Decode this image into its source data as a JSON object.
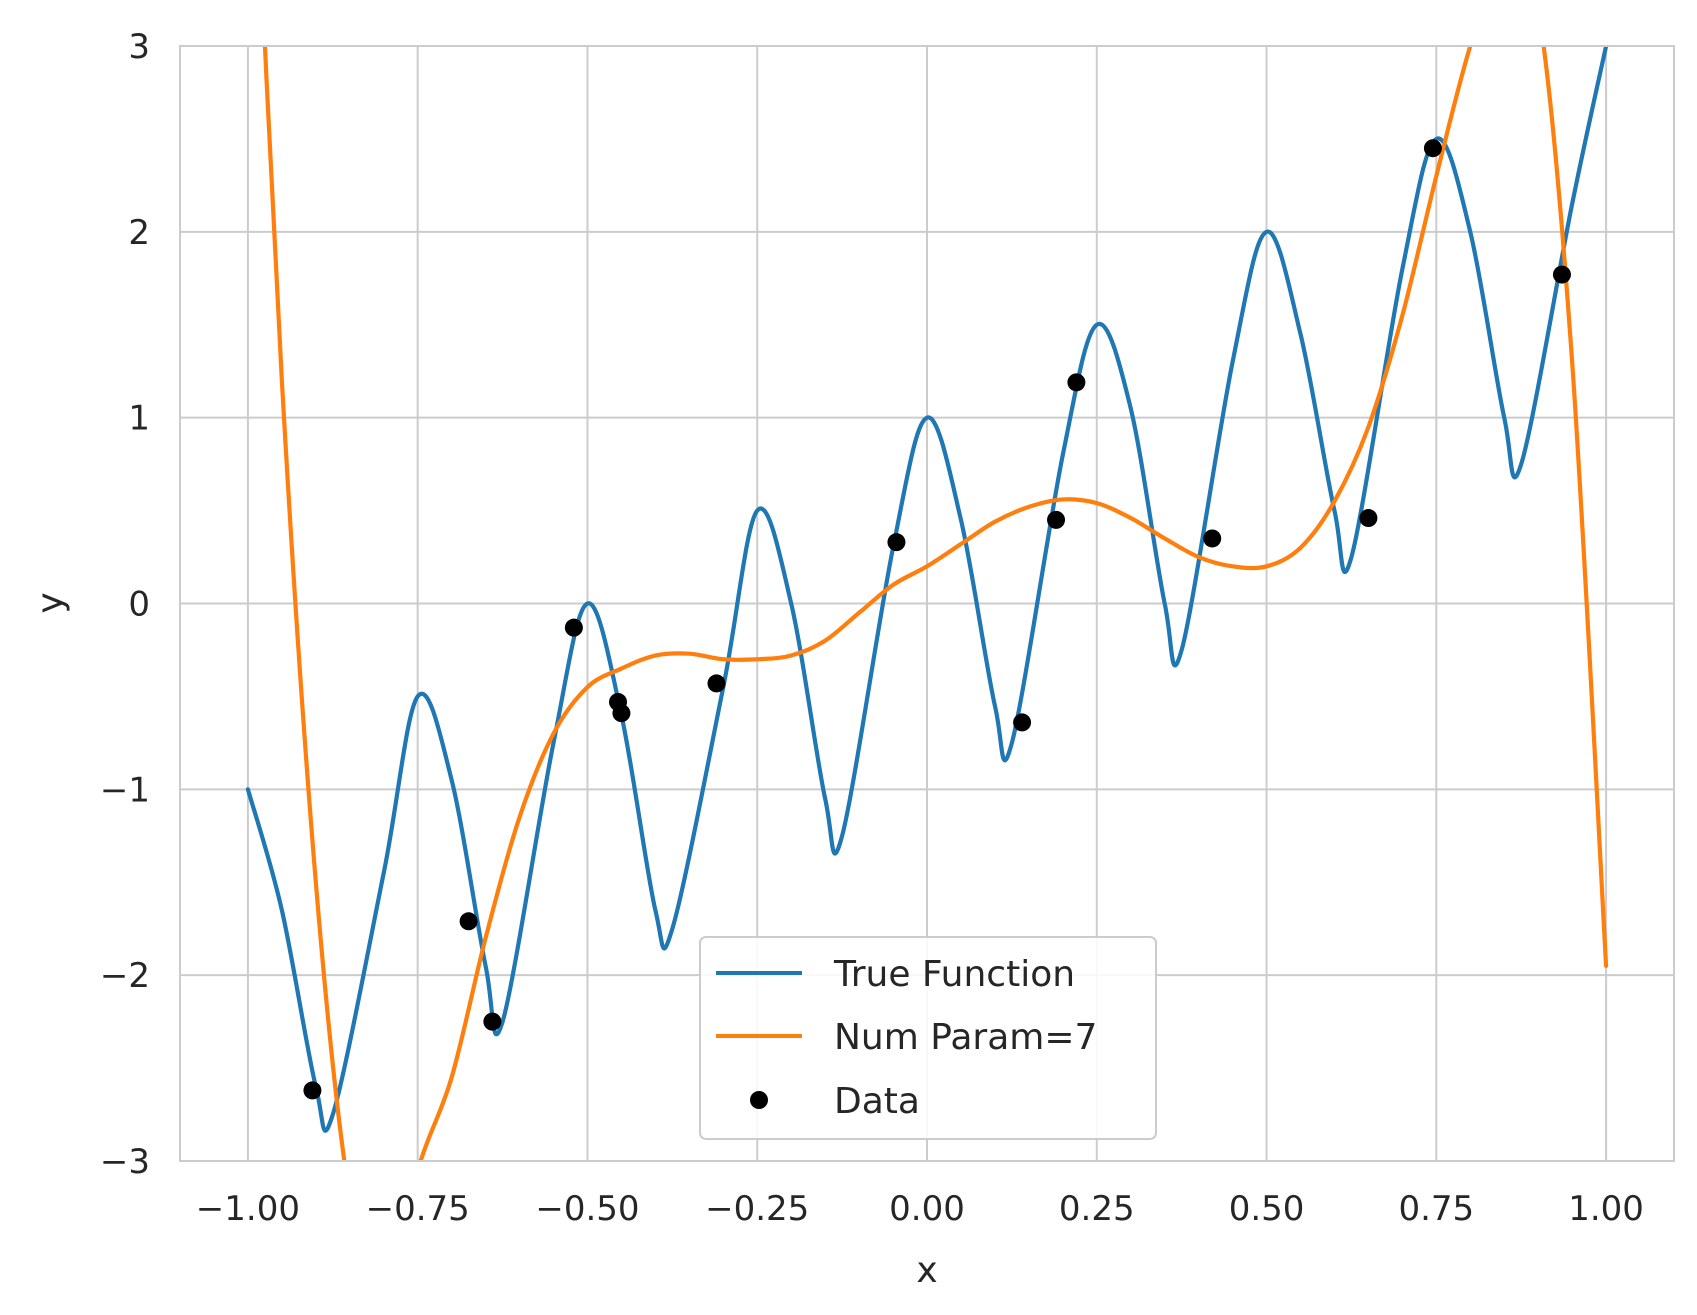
{
  "chart_data": {
    "type": "line",
    "title": "",
    "xlabel": "x",
    "ylabel": "y",
    "xlim": [
      -1.1,
      1.1
    ],
    "ylim": [
      -3,
      3
    ],
    "grid": true,
    "legend_position": "bottom-center",
    "x_ticks": [
      -1.0,
      -0.75,
      -0.5,
      -0.25,
      0.0,
      0.25,
      0.5,
      0.75,
      1.0
    ],
    "x_tick_labels": [
      "−1.00",
      "−0.75",
      "−0.50",
      "−0.25",
      "0.00",
      "0.25",
      "0.50",
      "0.75",
      "1.00"
    ],
    "y_ticks": [
      -3,
      -2,
      -1,
      0,
      1,
      2,
      3
    ],
    "y_tick_labels": [
      "−3",
      "−2",
      "−1",
      "0",
      "1",
      "2",
      "3"
    ],
    "series": [
      {
        "name": "True Function",
        "kind": "line",
        "color": "#1f77b4",
        "x": [
          -1.0,
          -0.95,
          -0.9,
          -0.875,
          -0.8,
          -0.75,
          -0.7,
          -0.65,
          -0.625,
          -0.55,
          -0.5,
          -0.45,
          -0.4,
          -0.375,
          -0.3,
          -0.25,
          -0.2,
          -0.15,
          -0.125,
          -0.05,
          0.0,
          0.05,
          0.1,
          0.125,
          0.2,
          0.25,
          0.3,
          0.35,
          0.375,
          0.45,
          0.5,
          0.55,
          0.6,
          0.625,
          0.7,
          0.75,
          0.8,
          0.85,
          0.875,
          0.95,
          1.0
        ],
        "y": [
          -1.0,
          -1.65,
          -2.6,
          -2.75,
          -1.45,
          -0.5,
          -0.95,
          -1.95,
          -2.25,
          -0.75,
          0.0,
          -0.6,
          -1.65,
          -1.75,
          -0.45,
          0.5,
          0.0,
          -1.05,
          -1.25,
          0.3,
          1.0,
          0.45,
          -0.55,
          -0.75,
          0.8,
          1.5,
          1.05,
          0.0,
          -0.25,
          1.3,
          2.0,
          1.45,
          0.5,
          0.25,
          1.8,
          2.5,
          2.0,
          1.0,
          0.75,
          2.15,
          3.0
        ]
      },
      {
        "name": "Num Param=7",
        "kind": "line",
        "color": "#ff7f0e",
        "x": [
          -1.0,
          -0.95,
          -0.9,
          -0.85,
          -0.8,
          -0.75,
          -0.7,
          -0.65,
          -0.6,
          -0.55,
          -0.5,
          -0.45,
          -0.4,
          -0.35,
          -0.3,
          -0.25,
          -0.2,
          -0.15,
          -0.1,
          -0.05,
          0.0,
          0.05,
          0.1,
          0.15,
          0.2,
          0.25,
          0.3,
          0.35,
          0.4,
          0.45,
          0.5,
          0.55,
          0.6,
          0.65,
          0.7,
          0.75,
          0.8,
          0.85,
          0.9,
          0.95,
          1.0
        ],
        "y": [
          4.95,
          1.2,
          -1.5,
          -3.2,
          -3.8,
          -3.05,
          -2.55,
          -1.8,
          -1.15,
          -0.7,
          -0.45,
          -0.35,
          -0.28,
          -0.27,
          -0.3,
          -0.3,
          -0.28,
          -0.2,
          -0.05,
          0.1,
          0.2,
          0.32,
          0.44,
          0.52,
          0.56,
          0.54,
          0.46,
          0.35,
          0.25,
          0.2,
          0.2,
          0.3,
          0.55,
          0.95,
          1.55,
          2.3,
          3.0,
          3.5,
          3.2,
          1.3,
          -1.95
        ]
      },
      {
        "name": "Data",
        "kind": "scatter",
        "color": "#000000",
        "x": [
          -0.905,
          -0.675,
          -0.64,
          -0.52,
          -0.455,
          -0.45,
          -0.31,
          -0.045,
          0.14,
          0.19,
          0.22,
          0.42,
          0.65,
          0.745,
          0.935
        ],
        "y": [
          -2.62,
          -1.71,
          -2.25,
          -0.13,
          -0.53,
          -0.59,
          -0.43,
          0.33,
          -0.64,
          0.45,
          1.19,
          0.35,
          0.46,
          2.45,
          1.77
        ]
      }
    ]
  }
}
